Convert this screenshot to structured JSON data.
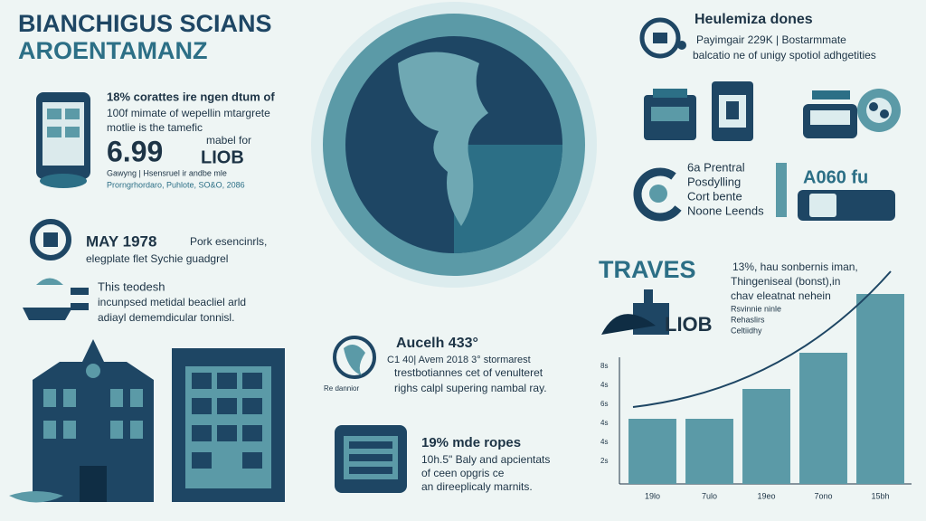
{
  "header": {
    "title_lines": [
      "BIANCHIGUS SCIANS",
      "AROENTAMANZ"
    ]
  },
  "phone_block": {
    "lines": [
      "18% corattes ire ngen dtum of",
      "100f mimate of wepellin mtargrete",
      "motlie is the tamefic"
    ],
    "big_value": "6.99",
    "unit_lines": [
      "mabel for",
      "LIOB"
    ],
    "footnotes": [
      "Gawyng | Hsensruel ir andbe mle",
      "Prorngrhordaro, Puhlote, SO&O, 2086"
    ]
  },
  "may_block": {
    "heading": "MAY 1978",
    "lines": [
      "Pork esencinrls,",
      "elegplate flet Sychie guadgrel"
    ]
  },
  "teodesh_block": {
    "lines": [
      "This teodesh",
      "incunpsed metidal beacliel arld",
      "adiayl dememdicular tonnisl."
    ]
  },
  "aucelh_block": {
    "icon_caption": "Re dannior",
    "heading": "Aucelh 433°",
    "lines": [
      "C1 40| Avem 2018 3° stormarest",
      "trestbotiannes cet of venulteret",
      "righs calpl supering nambal ray."
    ]
  },
  "ropes_block": {
    "heading": "19% mde ropes",
    "lines": [
      "10h.5\" Baly and apcientats",
      "of ceen opgris ce",
      "an direeplicaly marnits."
    ]
  },
  "right_top": {
    "heading": "Heulemiza dones",
    "lines": [
      "Payimgair 229K | Bostarmmate",
      "balcatio ne of unigy spotiol adhgetities"
    ]
  },
  "prentral_block": {
    "lines": [
      "6a Prentral",
      "Posdylling",
      "Cort bente",
      "Noone Leends"
    ],
    "badge": "A060 fu"
  },
  "traves_block": {
    "heading": "TRAVES",
    "sub": "LIOB",
    "lines": [
      "13%, hau sonbernis iman,",
      "Thingeniseal (bonst),in",
      "chav eleatnat nehein"
    ],
    "small_lines": [
      "Rsvinnie ninle",
      "Rehaslirs",
      "Celtiidhy"
    ]
  },
  "chart": {
    "type": "bar",
    "categories": [
      "19lo",
      "7ulo",
      "19eo",
      "7ono",
      "15bh"
    ],
    "values": [
      72,
      72,
      105,
      145,
      210
    ],
    "ylim": [
      0,
      220
    ],
    "axis_labels": [
      "8s",
      "4s",
      "6s",
      "4s",
      "4s",
      "2s"
    ],
    "color": "#5b9aa7"
  }
}
